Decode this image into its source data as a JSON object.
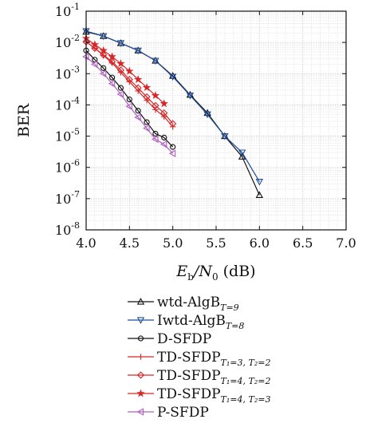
{
  "chart_data": {
    "type": "line",
    "xlabel": {
      "main": "E",
      "sub1": "b",
      "mid": "/N",
      "sub2": "0",
      "unit": " (dB)"
    },
    "ylabel": "BER",
    "xlim": [
      4.0,
      7.0
    ],
    "ylim_log10": [
      -8,
      -1
    ],
    "y_scale": "log",
    "grid": true,
    "x_ticks": [
      "4.0",
      "4.5",
      "5.0",
      "5.5",
      "6.0",
      "6.5",
      "7.0"
    ],
    "y_ticks": [
      {
        "exp": -1,
        "base": "10",
        "sup": "-1"
      },
      {
        "exp": -2,
        "base": "10",
        "sup": "-2"
      },
      {
        "exp": -3,
        "base": "10",
        "sup": "-3"
      },
      {
        "exp": -4,
        "base": "10",
        "sup": "-4"
      },
      {
        "exp": -5,
        "base": "10",
        "sup": "-5"
      },
      {
        "exp": -6,
        "base": "10",
        "sup": "-6"
      },
      {
        "exp": -7,
        "base": "10",
        "sup": "-7"
      },
      {
        "exp": -8,
        "base": "10",
        "sup": "-8"
      }
    ],
    "legend_position": "bottom",
    "series": [
      {
        "name": "wtd-AlgB",
        "sub": "T=9",
        "color": "#111111",
        "marker": "triangle-up",
        "x": [
          4.0,
          4.2,
          4.4,
          4.6,
          4.8,
          5.0,
          5.2,
          5.4,
          5.6,
          5.8,
          6.0
        ],
        "y": [
          0.022,
          0.016,
          0.0095,
          0.0055,
          0.0026,
          0.00085,
          0.00021,
          5.5e-05,
          1e-05,
          2.2e-06,
          1.3e-07
        ]
      },
      {
        "name": "Iwtd-AlgB",
        "sub": "T=8",
        "color": "#1f4e9c",
        "marker": "triangle-down",
        "x": [
          4.0,
          4.2,
          4.4,
          4.6,
          4.8,
          5.0,
          5.2,
          5.4,
          5.6,
          5.8,
          6.0
        ],
        "y": [
          0.023,
          0.016,
          0.0095,
          0.0055,
          0.0026,
          0.0008,
          0.0002,
          5e-05,
          1e-05,
          3e-06,
          3.5e-07
        ]
      },
      {
        "name": "D-SFDP",
        "sub": "",
        "color": "#111111",
        "marker": "circle",
        "x": [
          4.0,
          4.1,
          4.2,
          4.3,
          4.4,
          4.5,
          4.6,
          4.7,
          4.8,
          4.9,
          5.0
        ],
        "y": [
          0.0055,
          0.0028,
          0.0015,
          0.00075,
          0.00035,
          0.00015,
          6.5e-05,
          2.8e-05,
          1.2e-05,
          9e-06,
          4.5e-06
        ]
      },
      {
        "name": "TD-SFDP",
        "sub": "T₁=3,  T₂=2",
        "color": "#d62728",
        "marker": "plus",
        "x": [
          4.0,
          4.1,
          4.2,
          4.3,
          4.4,
          4.5,
          4.6,
          4.7,
          4.8,
          4.9,
          5.0
        ],
        "y": [
          0.0105,
          0.0065,
          0.0038,
          0.0022,
          0.0011,
          0.00055,
          0.00028,
          0.00014,
          7e-05,
          4.2e-05,
          2e-05
        ]
      },
      {
        "name": "TD-SFDP",
        "sub": "T₁=4,  T₂=2",
        "color": "#d62728",
        "marker": "diamond",
        "x": [
          4.0,
          4.1,
          4.2,
          4.3,
          4.4,
          4.5,
          4.6,
          4.7,
          4.8,
          4.9,
          5.0
        ],
        "y": [
          0.0105,
          0.0065,
          0.004,
          0.0024,
          0.0013,
          0.00065,
          0.00035,
          0.00018,
          9.5e-05,
          5.5e-05,
          2.5e-05
        ]
      },
      {
        "name": "TD-SFDP",
        "sub": "T₁=4,  T₂=3",
        "color": "#d62728",
        "marker": "star",
        "x": [
          4.0,
          4.1,
          4.2,
          4.3,
          4.4,
          4.5,
          4.6,
          4.7,
          4.8,
          4.9
        ],
        "y": [
          0.0135,
          0.0085,
          0.0055,
          0.0035,
          0.0021,
          0.0012,
          0.00065,
          0.00036,
          0.0002,
          0.00011
        ]
      },
      {
        "name": "P-SFDP",
        "sub": "",
        "color": "#b05fc0",
        "marker": "triangle-left",
        "x": [
          4.0,
          4.1,
          4.2,
          4.3,
          4.4,
          4.5,
          4.6,
          4.7,
          4.8,
          4.9,
          5.0
        ],
        "y": [
          0.0035,
          0.002,
          0.001,
          0.00048,
          0.00022,
          9e-05,
          4e-05,
          1.8e-05,
          8e-06,
          5.5e-06,
          2.8e-06
        ]
      }
    ]
  }
}
